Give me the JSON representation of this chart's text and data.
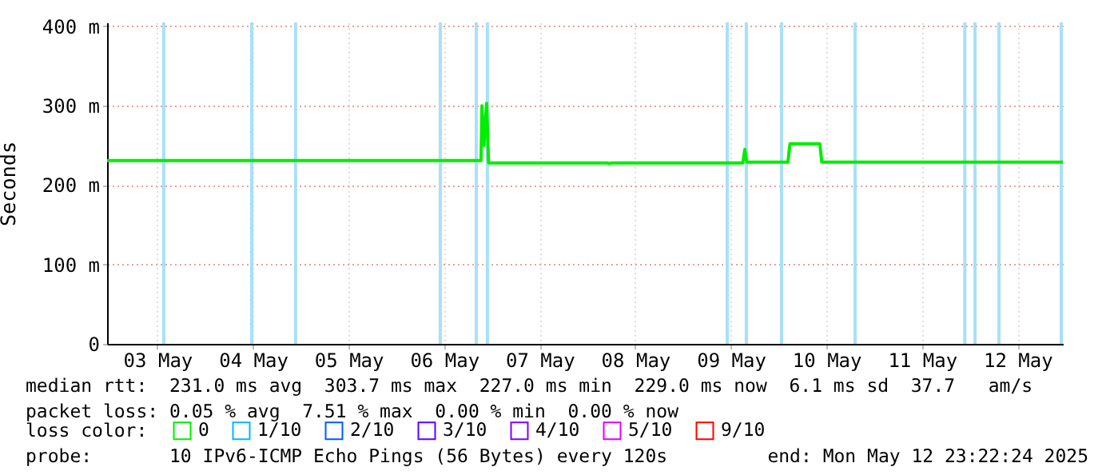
{
  "chart_data": {
    "type": "line",
    "ylabel": "Seconds",
    "legend_title": "loss color:",
    "legend": "bottom",
    "grid": true,
    "x": [
      "2025-05-02T23:22",
      "2025-05-06T21:16",
      "2025-05-06T21:30",
      "2025-05-06T22:00",
      "2025-05-06T22:40",
      "2025-05-06T23:10",
      "2025-05-08T05:00",
      "2025-05-08T05:30",
      "2025-05-08T06:00",
      "2025-05-09T15:00",
      "2025-05-09T15:30",
      "2025-05-09T16:00",
      "2025-05-10T02:20",
      "2025-05-10T02:50",
      "2025-05-10T10:20",
      "2025-05-10T10:50",
      "2025-05-12T23:22"
    ],
    "series": [
      {
        "name": "0",
        "color": "#00ee00",
        "values": [
          231,
          231,
          300,
          250,
          303,
          228,
          228,
          227,
          228,
          228,
          245,
          229,
          229,
          252,
          252,
          229,
          229
        ]
      },
      {
        "name": "1/10",
        "color": "#00b8ff",
        "values": [
          null,
          null,
          null,
          null,
          null,
          null,
          null,
          null,
          null,
          null,
          null,
          null,
          null,
          null,
          null,
          null,
          null
        ]
      },
      {
        "name": "2/10",
        "color": "#0059ff",
        "values": [
          null,
          null,
          null,
          null,
          null,
          null,
          null,
          null,
          null,
          null,
          null,
          null,
          null,
          null,
          null,
          null,
          null
        ]
      },
      {
        "name": "3/10",
        "color": "#5e00ff",
        "values": [
          null,
          null,
          null,
          null,
          null,
          null,
          null,
          null,
          null,
          null,
          null,
          null,
          null,
          null,
          null,
          null,
          null
        ]
      },
      {
        "name": "4/10",
        "color": "#7e00ff",
        "values": [
          null,
          null,
          null,
          null,
          null,
          null,
          null,
          null,
          null,
          null,
          null,
          null,
          null,
          null,
          null,
          null,
          null
        ]
      },
      {
        "name": "5/10",
        "color": "#dd00ff",
        "values": [
          null,
          null,
          null,
          null,
          null,
          null,
          null,
          null,
          null,
          null,
          null,
          null,
          null,
          null,
          null,
          null,
          null
        ]
      },
      {
        "name": "9/10",
        "color": "#ff0000",
        "values": [
          null,
          null,
          null,
          null,
          null,
          null,
          null,
          null,
          null,
          null,
          null,
          null,
          null,
          null,
          null,
          null,
          null
        ]
      }
    ],
    "xlim": [
      "2025-05-02T23:22",
      "2025-05-12T23:22"
    ],
    "xticks": [
      {
        "value": "2025-05-03T12:00",
        "label": "03 May"
      },
      {
        "value": "2025-05-04T12:00",
        "label": "04 May"
      },
      {
        "value": "2025-05-05T12:00",
        "label": "05 May"
      },
      {
        "value": "2025-05-06T12:00",
        "label": "06 May"
      },
      {
        "value": "2025-05-07T12:00",
        "label": "07 May"
      },
      {
        "value": "2025-05-08T12:00",
        "label": "08 May"
      },
      {
        "value": "2025-05-09T12:00",
        "label": "09 May"
      },
      {
        "value": "2025-05-10T12:00",
        "label": "10 May"
      },
      {
        "value": "2025-05-11T12:00",
        "label": "11 May"
      },
      {
        "value": "2025-05-12T12:00",
        "label": "12 May"
      }
    ],
    "ylim": [
      0,
      405
    ],
    "yticks": [
      0,
      {
        "value": 100,
        "label": "100 m"
      },
      {
        "value": 200,
        "label": "200 m"
      },
      {
        "value": 300,
        "label": "300 m"
      },
      {
        "value": 400,
        "label": "400 m"
      }
    ],
    "ref_lines": [
      {
        "axis": "x",
        "value": "2025-05-03T13:36",
        "color": "#a8e0f8"
      },
      {
        "axis": "x",
        "value": "2025-05-04T11:41",
        "color": "#a8e0f8"
      },
      {
        "axis": "x",
        "value": "2025-05-04T22:42",
        "color": "#a8e0f8"
      },
      {
        "axis": "x",
        "value": "2025-05-06T11:02",
        "color": "#a8e0f8"
      },
      {
        "axis": "x",
        "value": "2025-05-06T20:04",
        "color": "#a8e0f8"
      },
      {
        "axis": "x",
        "value": "2025-05-06T22:52",
        "color": "#a8e0f8"
      },
      {
        "axis": "x",
        "value": "2025-05-09T11:05",
        "color": "#a8e0f8"
      },
      {
        "axis": "x",
        "value": "2025-05-09T15:53",
        "color": "#a8e0f8"
      },
      {
        "axis": "x",
        "value": "2025-05-10T00:43",
        "color": "#a8e0f8"
      },
      {
        "axis": "x",
        "value": "2025-05-10T19:12",
        "color": "#a8e0f8"
      },
      {
        "axis": "x",
        "value": "2025-05-11T22:45",
        "color": "#a8e0f8"
      },
      {
        "axis": "x",
        "value": "2025-05-12T01:18",
        "color": "#a8e0f8"
      },
      {
        "axis": "x",
        "value": "2025-05-12T07:19",
        "color": "#a8e0f8"
      },
      {
        "axis": "x",
        "value": "2025-05-12T22:58",
        "color": "#a8e0f8"
      }
    ],
    "annotations": [
      "median rtt:  231.0 ms avg  303.7 ms max  227.0 ms min  229.0 ms now  6.1 ms sd  37.7   am/s",
      "packet loss: 0.05 % avg  7.51 % max  0.00 % min  0.00 % now",
      "probe:       10 IPv6-ICMP Echo Pings (56 Bytes) every 120s",
      "end: Mon May 12 23:22:24 2025"
    ]
  }
}
